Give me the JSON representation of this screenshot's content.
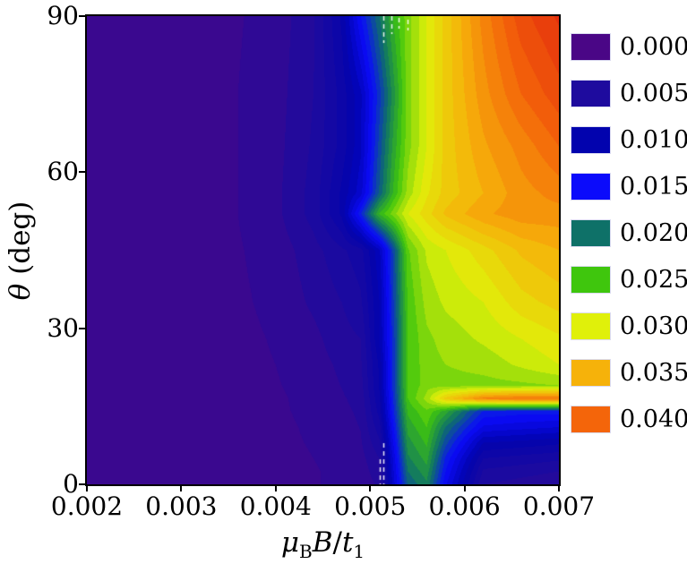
{
  "figure": {
    "ylabel_theta": "θ",
    "ylabel_rest": " (deg)",
    "xlabel_mu": "μ",
    "xlabel_mu_sub": "B",
    "xlabel_B": "B",
    "xlabel_slash": "/",
    "xlabel_t": "t",
    "xlabel_t_sub": "1"
  },
  "axes": {
    "x": {
      "tick_labels": [
        "0.002",
        "0.003",
        "0.004",
        "0.005",
        "0.006",
        "0.007"
      ],
      "values": [
        0.002,
        0.003,
        0.004,
        0.005,
        0.006,
        0.007
      ]
    },
    "y": {
      "tick_labels": [
        "0",
        "30",
        "60",
        "90"
      ],
      "values": [
        0,
        30,
        60,
        90
      ]
    }
  },
  "legend": {
    "items": [
      {
        "label": "0.000",
        "color": "#4A0686"
      },
      {
        "label": "0.005",
        "color": "#1E0B9E"
      },
      {
        "label": "0.010",
        "color": "#0203AE"
      },
      {
        "label": "0.015",
        "color": "#0B0BFB"
      },
      {
        "label": "0.020",
        "color": "#0E7168"
      },
      {
        "label": "0.025",
        "color": "#3FC60D"
      },
      {
        "label": "0.030",
        "color": "#E0F00A"
      },
      {
        "label": "0.035",
        "color": "#F6B20A"
      },
      {
        "label": "0.040",
        "color": "#F4650A"
      }
    ]
  },
  "chart_data": {
    "type": "heatmap",
    "title": "",
    "xlabel": "μ_B B / t_1",
    "ylabel": "θ (deg)",
    "xlim": [
      0.002,
      0.007
    ],
    "ylim": [
      0,
      90
    ],
    "x": [
      0.002,
      0.003,
      0.0036,
      0.004,
      0.0044,
      0.0047,
      0.0049,
      0.0051,
      0.00525,
      0.0054,
      0.0056,
      0.0058,
      0.0062,
      0.0066,
      0.007
    ],
    "y": [
      0,
      2.5,
      5,
      8,
      11,
      14,
      16.5,
      19,
      23,
      28,
      35,
      45,
      52,
      56,
      65,
      75,
      90
    ],
    "values": [
      [
        0.002,
        0.002,
        0.002,
        0.0021,
        0.0024,
        0.0028,
        0.003,
        0.004,
        0.012,
        0.019,
        0.021,
        0.014,
        0.005,
        0.0045,
        0.004
      ],
      [
        0.002,
        0.002,
        0.002,
        0.0021,
        0.0024,
        0.0028,
        0.0031,
        0.0045,
        0.0125,
        0.02,
        0.022,
        0.015,
        0.006,
        0.0055,
        0.005
      ],
      [
        0.002,
        0.002,
        0.002,
        0.0021,
        0.0025,
        0.0029,
        0.0033,
        0.005,
        0.013,
        0.021,
        0.023,
        0.016,
        0.0075,
        0.007,
        0.0065
      ],
      [
        0.002,
        0.002,
        0.002,
        0.0022,
        0.0026,
        0.003,
        0.0036,
        0.006,
        0.014,
        0.022,
        0.024,
        0.018,
        0.01,
        0.0095,
        0.009
      ],
      [
        0.002,
        0.002,
        0.002,
        0.0022,
        0.0027,
        0.0032,
        0.0038,
        0.007,
        0.015,
        0.023,
        0.025,
        0.02,
        0.0135,
        0.013,
        0.0125
      ],
      [
        0.002,
        0.002,
        0.0021,
        0.0023,
        0.0028,
        0.0034,
        0.004,
        0.008,
        0.016,
        0.024,
        0.026,
        0.023,
        0.016,
        0.0155,
        0.0155
      ],
      [
        0.002,
        0.002,
        0.0021,
        0.0023,
        0.0029,
        0.0036,
        0.0042,
        0.0085,
        0.0165,
        0.025,
        0.028,
        0.033,
        0.038,
        0.039,
        0.039
      ],
      [
        0.002,
        0.002,
        0.0021,
        0.0024,
        0.003,
        0.0038,
        0.0045,
        0.009,
        0.017,
        0.025,
        0.027,
        0.027,
        0.027,
        0.0272,
        0.0275
      ],
      [
        0.002,
        0.002,
        0.0022,
        0.0025,
        0.0032,
        0.004,
        0.0048,
        0.009,
        0.017,
        0.025,
        0.027,
        0.0275,
        0.028,
        0.029,
        0.03
      ],
      [
        0.002,
        0.002,
        0.0022,
        0.0026,
        0.0034,
        0.0045,
        0.005,
        0.01,
        0.017,
        0.025,
        0.0272,
        0.028,
        0.029,
        0.03,
        0.031
      ],
      [
        0.002,
        0.002,
        0.0023,
        0.0028,
        0.004,
        0.005,
        0.006,
        0.01,
        0.0175,
        0.0252,
        0.028,
        0.029,
        0.03,
        0.032,
        0.033
      ],
      [
        0.002,
        0.002,
        0.0024,
        0.003,
        0.0045,
        0.006,
        0.007,
        0.011,
        0.018,
        0.026,
        0.029,
        0.03,
        0.032,
        0.034,
        0.035
      ],
      [
        0.002,
        0.002,
        0.0025,
        0.0034,
        0.0055,
        0.009,
        0.016,
        0.024,
        0.027,
        0.03,
        0.032,
        0.034,
        0.036,
        0.037,
        0.037
      ],
      [
        0.002,
        0.002,
        0.0025,
        0.0034,
        0.0055,
        0.009,
        0.012,
        0.019,
        0.024,
        0.028,
        0.031,
        0.033,
        0.035,
        0.037,
        0.038
      ],
      [
        0.002,
        0.002,
        0.0025,
        0.0033,
        0.0052,
        0.008,
        0.011,
        0.018,
        0.023,
        0.027,
        0.03,
        0.033,
        0.036,
        0.038,
        0.04
      ],
      [
        0.002,
        0.002,
        0.0025,
        0.0032,
        0.005,
        0.008,
        0.011,
        0.017,
        0.022,
        0.027,
        0.03,
        0.033,
        0.037,
        0.04,
        0.042
      ],
      [
        0.002,
        0.002,
        0.0024,
        0.003,
        0.0048,
        0.009,
        0.015,
        0.02,
        0.024,
        0.027,
        0.03,
        0.033,
        0.038,
        0.042,
        0.044
      ]
    ],
    "colormap": {
      "level_step": 0.00125,
      "vmin": 0.0,
      "vmax": 0.045,
      "anchors": [
        {
          "value": 0.0,
          "color": "#4A0686"
        },
        {
          "value": 0.005,
          "color": "#1E0B9E"
        },
        {
          "value": 0.01,
          "color": "#0203AE"
        },
        {
          "value": 0.015,
          "color": "#0B0BFB"
        },
        {
          "value": 0.02,
          "color": "#0E7168"
        },
        {
          "value": 0.025,
          "color": "#3FC60D"
        },
        {
          "value": 0.03,
          "color": "#E0F00A"
        },
        {
          "value": 0.035,
          "color": "#F6B20A"
        },
        {
          "value": 0.04,
          "color": "#F4650A"
        },
        {
          "value": 0.045,
          "color": "#E2280D"
        }
      ]
    },
    "legend_levels": [
      0.0,
      0.005,
      0.01,
      0.015,
      0.02,
      0.025,
      0.03,
      0.035,
      0.04
    ]
  }
}
